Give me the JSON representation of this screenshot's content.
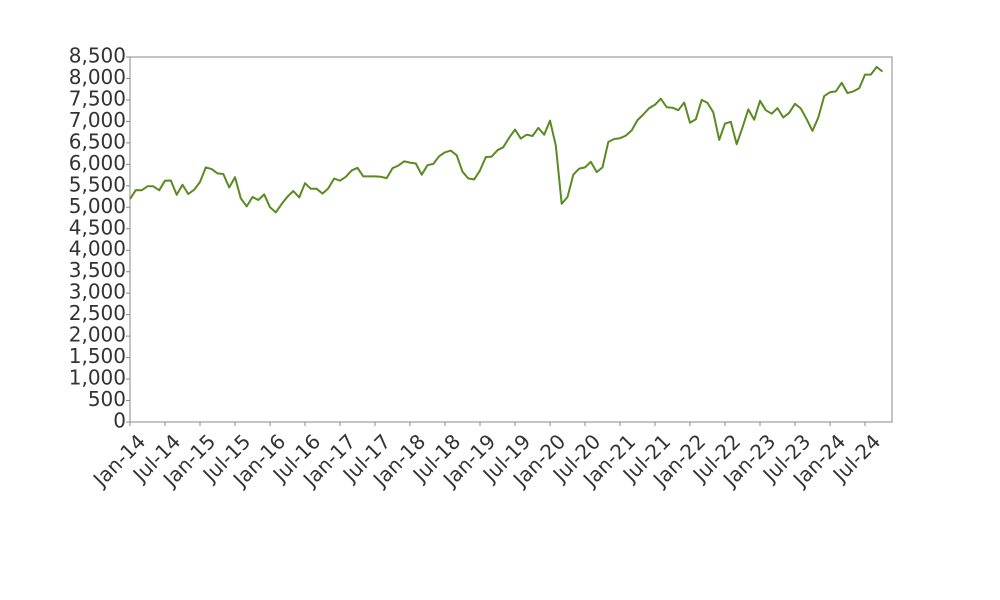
{
  "chart_data": {
    "type": "line",
    "categories": [
      "Jan-14",
      null,
      null,
      null,
      null,
      null,
      "Jul-14",
      null,
      null,
      null,
      null,
      null,
      "Jan-15",
      null,
      null,
      null,
      null,
      null,
      "Jul-15",
      null,
      null,
      null,
      null,
      null,
      "Jan-16",
      null,
      null,
      null,
      null,
      null,
      "Jul-16",
      null,
      null,
      null,
      null,
      null,
      "Jan-17",
      null,
      null,
      null,
      null,
      null,
      "Jul-17",
      null,
      null,
      null,
      null,
      null,
      "Jan-18",
      null,
      null,
      null,
      null,
      null,
      "Jul-18",
      null,
      null,
      null,
      null,
      null,
      "Jan-19",
      null,
      null,
      null,
      null,
      null,
      "Jul-19",
      null,
      null,
      null,
      null,
      null,
      "Jan-20",
      null,
      null,
      null,
      null,
      null,
      "Jul-20",
      null,
      null,
      null,
      null,
      null,
      "Jan-21",
      null,
      null,
      null,
      null,
      null,
      "Jul-21",
      null,
      null,
      null,
      null,
      null,
      "Jan-22",
      null,
      null,
      null,
      null,
      null,
      "Jul-22",
      null,
      null,
      null,
      null,
      null,
      "Jan-23",
      null,
      null,
      null,
      null,
      null,
      "Jul-23",
      null,
      null,
      null,
      null,
      null,
      "Jan-24",
      null,
      null,
      null,
      null,
      null,
      "Jul-24",
      null,
      null,
      null
    ],
    "values": [
      5190,
      5400,
      5395,
      5490,
      5490,
      5395,
      5620,
      5625,
      5290,
      5525,
      5310,
      5410,
      5590,
      5930,
      5890,
      5790,
      5775,
      5460,
      5700,
      5210,
      5020,
      5240,
      5170,
      5300,
      5000,
      4880,
      5080,
      5250,
      5380,
      5230,
      5560,
      5430,
      5430,
      5320,
      5440,
      5670,
      5620,
      5710,
      5860,
      5920,
      5720,
      5720,
      5720,
      5710,
      5680,
      5910,
      5970,
      6070,
      6040,
      6020,
      5760,
      5980,
      6010,
      6190,
      6280,
      6320,
      6210,
      5830,
      5670,
      5650,
      5860,
      6170,
      6180,
      6330,
      6400,
      6620,
      6810,
      6600,
      6690,
      6660,
      6850,
      6690,
      7020,
      6440,
      5080,
      5240,
      5760,
      5900,
      5930,
      6060,
      5820,
      5930,
      6520,
      6590,
      6610,
      6670,
      6790,
      7030,
      7160,
      7310,
      7390,
      7530,
      7330,
      7320,
      7260,
      7440,
      6970,
      7050,
      7500,
      7430,
      7210,
      6570,
      6950,
      6990,
      6470,
      6860,
      7280,
      7040,
      7480,
      7260,
      7180,
      7310,
      7090,
      7200,
      7410,
      7300,
      7050,
      6780,
      7090,
      7590,
      7680,
      7700,
      7900,
      7660,
      7700,
      7770,
      8090,
      8090,
      8270,
      8160
    ],
    "color": "#5a8a22",
    "ylim": [
      0,
      8500
    ],
    "yticks": [
      0,
      500,
      {
        "value": 1000,
        "label": "1,000"
      },
      {
        "value": 1500,
        "label": "1,500"
      },
      {
        "value": 2000,
        "label": "2,000"
      },
      {
        "value": 2500,
        "label": "2,500"
      },
      {
        "value": 3000,
        "label": "3,000"
      },
      {
        "value": 3500,
        "label": "3,500"
      },
      {
        "value": 4000,
        "label": "4,000"
      },
      {
        "value": 4500,
        "label": "4,500"
      },
      {
        "value": 5000,
        "label": "5,000"
      },
      {
        "value": 5500,
        "label": "5,500"
      },
      {
        "value": 6000,
        "label": "6,000"
      },
      {
        "value": 6500,
        "label": "6,500"
      },
      {
        "value": 7000,
        "label": "7,000"
      },
      {
        "value": 7500,
        "label": "7,500"
      },
      {
        "value": 8000,
        "label": "8,000"
      },
      {
        "value": 8500,
        "label": "8,500"
      }
    ]
  }
}
